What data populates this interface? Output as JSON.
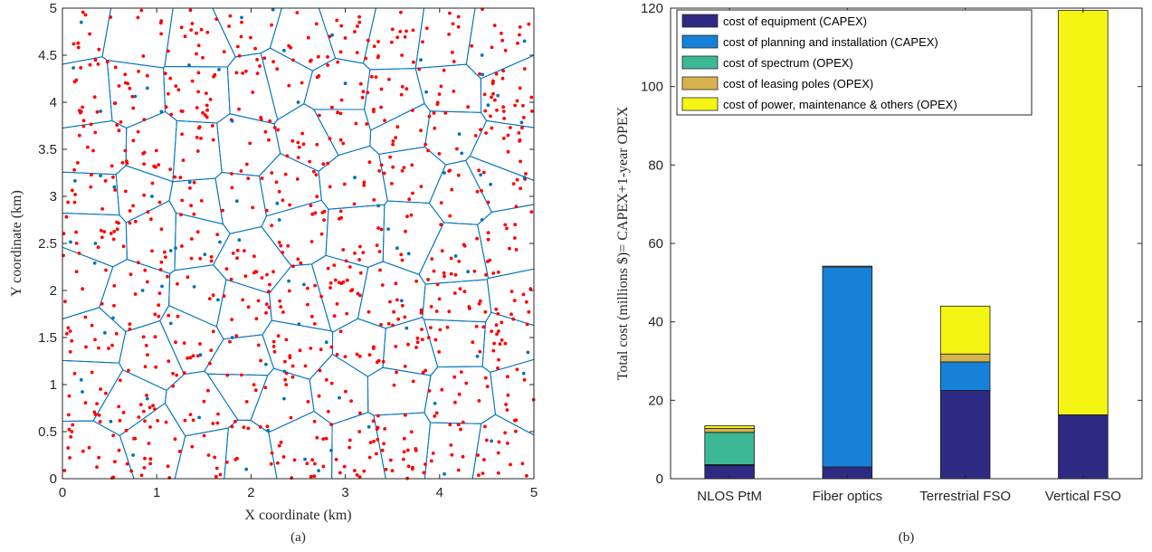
{
  "chart_data": [
    {
      "type": "scatter",
      "panel_label": "(a)",
      "xlabel": "X coordinate (km)",
      "ylabel": "Y coordinate (km)",
      "xlim": [
        0,
        5
      ],
      "ylim": [
        0,
        5
      ],
      "xticks": [
        "0",
        "1",
        "2",
        "3",
        "4",
        "5"
      ],
      "yticks": [
        "0",
        "0.5",
        "1",
        "1.5",
        "2",
        "2.5",
        "3",
        "3.5",
        "4",
        "4.5",
        "5"
      ],
      "grid": false,
      "overlay": "voronoi cell boundaries",
      "series": [
        {
          "color": "#ff0000",
          "count_approx": 900,
          "points_sample": [
            [
              0.12,
              4.62
            ],
            [
              0.35,
              4.45
            ],
            [
              0.8,
              4.9
            ],
            [
              1.3,
              4.7
            ],
            [
              1.9,
              4.85
            ],
            [
              2.4,
              4.6
            ],
            [
              3.1,
              4.75
            ],
            [
              3.6,
              4.5
            ],
            [
              4.2,
              4.8
            ],
            [
              4.7,
              4.55
            ],
            [
              0.2,
              3.9
            ],
            [
              0.6,
              3.7
            ],
            [
              1.1,
              3.95
            ],
            [
              1.6,
              3.6
            ],
            [
              2.2,
              3.8
            ],
            [
              2.7,
              3.55
            ],
            [
              3.3,
              3.9
            ],
            [
              3.8,
              3.7
            ],
            [
              4.3,
              3.95
            ],
            [
              4.85,
              3.6
            ],
            [
              0.3,
              3.1
            ],
            [
              0.75,
              2.9
            ],
            [
              1.25,
              3.2
            ],
            [
              1.7,
              2.85
            ],
            [
              2.3,
              3.05
            ],
            [
              2.75,
              2.6
            ],
            [
              3.2,
              3.15
            ],
            [
              3.7,
              2.8
            ],
            [
              4.4,
              3.05
            ],
            [
              4.8,
              2.7
            ],
            [
              0.15,
              2.2
            ],
            [
              0.55,
              2.05
            ],
            [
              1.05,
              2.3
            ],
            [
              1.6,
              1.95
            ],
            [
              2.05,
              2.2
            ],
            [
              2.6,
              1.85
            ],
            [
              3.05,
              2.25
            ],
            [
              3.55,
              1.9
            ],
            [
              4.05,
              2.15
            ],
            [
              4.6,
              1.8
            ],
            [
              0.25,
              1.4
            ],
            [
              0.7,
              1.15
            ],
            [
              1.2,
              1.45
            ],
            [
              1.75,
              1.1
            ],
            [
              2.25,
              1.35
            ],
            [
              2.8,
              1.05
            ],
            [
              3.3,
              1.4
            ],
            [
              3.85,
              1.15
            ],
            [
              4.35,
              1.45
            ],
            [
              4.9,
              1.05
            ],
            [
              0.1,
              0.5
            ],
            [
              0.6,
              0.3
            ],
            [
              1.1,
              0.6
            ],
            [
              1.55,
              0.25
            ],
            [
              2.1,
              0.55
            ],
            [
              2.65,
              0.2
            ],
            [
              3.15,
              0.5
            ],
            [
              3.75,
              0.3
            ],
            [
              4.25,
              0.6
            ],
            [
              4.75,
              0.15
            ]
          ]
        },
        {
          "color": "#0072bd",
          "count_approx": 90,
          "points_sample": [
            [
              0.2,
              4.85
            ],
            [
              1.9,
              4.9
            ],
            [
              2.35,
              4.55
            ],
            [
              3.8,
              4.45
            ],
            [
              4.45,
              4.5
            ],
            [
              4.9,
              4.65
            ],
            [
              0.9,
              4.15
            ],
            [
              1.05,
              3.9
            ],
            [
              1.8,
              3.8
            ],
            [
              2.5,
              4.0
            ],
            [
              3.0,
              4.2
            ],
            [
              3.1,
              3.2
            ],
            [
              0.55,
              3.1
            ],
            [
              0.95,
              3.0
            ],
            [
              1.35,
              3.15
            ],
            [
              1.85,
              2.95
            ],
            [
              2.3,
              2.75
            ],
            [
              3.35,
              2.9
            ],
            [
              4.05,
              3.25
            ],
            [
              4.45,
              2.75
            ],
            [
              4.9,
              3.2
            ],
            [
              0.35,
              2.5
            ],
            [
              0.85,
              2.0
            ],
            [
              1.2,
              2.45
            ],
            [
              1.65,
              1.9
            ],
            [
              2.4,
              2.1
            ],
            [
              3.55,
              2.45
            ],
            [
              4.3,
              2.2
            ],
            [
              0.45,
              1.55
            ],
            [
              1.15,
              1.65
            ],
            [
              1.8,
              1.5
            ],
            [
              2.8,
              1.45
            ],
            [
              3.65,
              1.6
            ],
            [
              4.4,
              1.3
            ],
            [
              0.2,
              1.05
            ],
            [
              0.9,
              0.85
            ],
            [
              1.45,
              0.65
            ],
            [
              2.35,
              0.85
            ],
            [
              3.25,
              0.55
            ],
            [
              3.95,
              0.8
            ],
            [
              4.55,
              0.4
            ],
            [
              0.75,
              0.25
            ],
            [
              1.95,
              0.1
            ],
            [
              2.85,
              0.3
            ],
            [
              4.05,
              0.05
            ]
          ]
        }
      ]
    },
    {
      "type": "bar",
      "stacked": true,
      "panel_label": "(b)",
      "ylabel": "Total cost (millions $)= CAPEX+1-year OPEX",
      "xlabel": "",
      "ylim": [
        0,
        120
      ],
      "yticks": [
        "0",
        "20",
        "40",
        "60",
        "80",
        "100",
        "120"
      ],
      "grid": false,
      "legend_position": "top-left",
      "categories": [
        "NLOS PtM",
        "Fiber optics",
        "Terrestrial FSO",
        "Vertical FSO"
      ],
      "series": [
        {
          "name": "cost of equipment (CAPEX)",
          "color": "#2e2a83",
          "values": [
            3.4,
            3.0,
            22.5,
            16.3
          ]
        },
        {
          "name": "cost of planning and installation (CAPEX)",
          "color": "#1681d6",
          "values": [
            0.2,
            51.0,
            7.3,
            0
          ]
        },
        {
          "name": "cost of spectrum (OPEX)",
          "color": "#3cb896",
          "values": [
            8.2,
            0,
            0,
            0
          ]
        },
        {
          "name": "cost of leasing poles (OPEX)",
          "color": "#d6b34b",
          "values": [
            1.0,
            0,
            2.0,
            0
          ]
        },
        {
          "name": "cost of power, maintenance & others (OPEX)",
          "color": "#f5f514",
          "values": [
            0.7,
            0.2,
            12.2,
            103.1
          ]
        }
      ]
    }
  ]
}
